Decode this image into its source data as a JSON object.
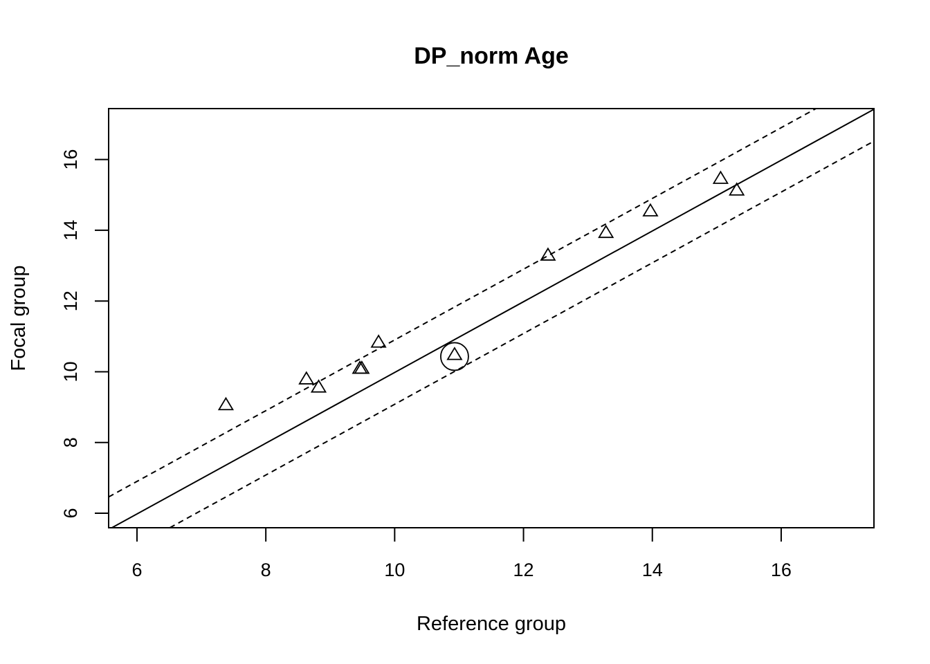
{
  "chart_data": {
    "type": "scatter",
    "title": "DP_norm Age",
    "xlabel": "Reference group",
    "ylabel": "Focal group",
    "xlim": [
      5.56,
      17.44
    ],
    "ylim": [
      5.59,
      17.44
    ],
    "x_ticks": [
      6,
      8,
      10,
      12,
      14,
      16
    ],
    "y_ticks": [
      6,
      8,
      10,
      12,
      14,
      16
    ],
    "x_tick_labels": [
      "6",
      "8",
      "10",
      "12",
      "14",
      "16"
    ],
    "y_tick_labels": [
      "6",
      "8",
      "10",
      "12",
      "14",
      "16"
    ],
    "grid": false,
    "legend": "none",
    "marker": "open-triangle",
    "points": [
      {
        "x": 7.38,
        "y": 9.05
      },
      {
        "x": 8.63,
        "y": 9.78
      },
      {
        "x": 8.82,
        "y": 9.55
      },
      {
        "x": 9.46,
        "y": 10.08
      },
      {
        "x": 9.49,
        "y": 10.08
      },
      {
        "x": 9.75,
        "y": 10.82
      },
      {
        "x": 10.93,
        "y": 10.47,
        "flagged": true
      },
      {
        "x": 12.38,
        "y": 13.28
      },
      {
        "x": 13.28,
        "y": 13.92
      },
      {
        "x": 13.97,
        "y": 14.53
      },
      {
        "x": 15.06,
        "y": 15.45
      },
      {
        "x": 15.31,
        "y": 15.12
      }
    ],
    "lines": [
      {
        "name": "fit",
        "style": "solid",
        "intercept": -0.02,
        "slope": 1.0
      },
      {
        "name": "upper-bound",
        "style": "dashed",
        "intercept": 0.9,
        "slope": 1.0
      },
      {
        "name": "lower-bound",
        "style": "dashed",
        "intercept": -0.92,
        "slope": 1.0
      }
    ]
  }
}
